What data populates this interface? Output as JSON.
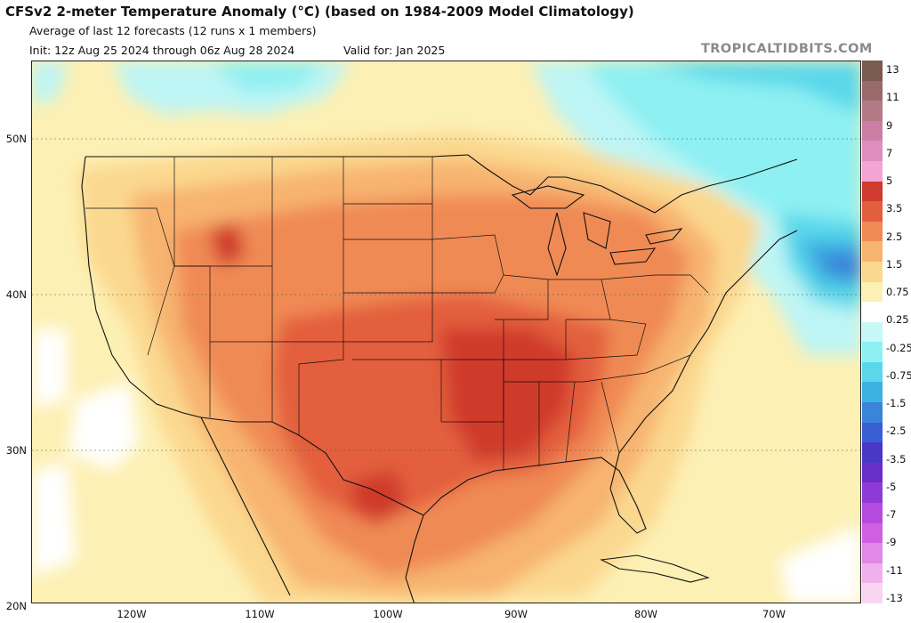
{
  "header": {
    "title": "CFSv2 2-meter Temperature Anomaly (°C) (based on 1984-2009 Model Climatology)",
    "subtitle": "Average of last 12 forecasts (12 runs x 1 members)",
    "init": "Init: 12z Aug 25 2024 through 06z Aug 28 2024",
    "valid": "Valid for: Jan 2025",
    "brand": "TROPICALTIDBITS.COM"
  },
  "map": {
    "latitude_labels": [
      "50N",
      "40N",
      "30N",
      "20N"
    ],
    "longitude_labels": [
      "120W",
      "110W",
      "100W",
      "90W",
      "80W",
      "70W"
    ]
  },
  "colorbar": {
    "labels": [
      "13",
      "11",
      "9",
      "7",
      "5",
      "3.5",
      "2.5",
      "1.5",
      "0.75",
      "0.25",
      "-0.25",
      "-0.75",
      "-1.5",
      "-2.5",
      "-3.5",
      "-5",
      "-7",
      "-9",
      "-11",
      "-13"
    ],
    "colors": [
      "#7b5a50",
      "#9a6a6a",
      "#b37a86",
      "#cc7ea4",
      "#e08cc0",
      "#f3a4d4",
      "#cf3b2c",
      "#e35e3c",
      "#f08a55",
      "#f7b46f",
      "#fbd88f",
      "#fdf0b4",
      "#ffffff",
      "#c6f8f8",
      "#8ef0f2",
      "#5ad8ea",
      "#3cb2e2",
      "#3a84da",
      "#3a5fd2",
      "#4838c8",
      "#6a2ec8",
      "#8e3ad6",
      "#b44ae0",
      "#d060e2",
      "#e288e6",
      "#f0b0ec",
      "#f8d6f2"
    ]
  }
}
